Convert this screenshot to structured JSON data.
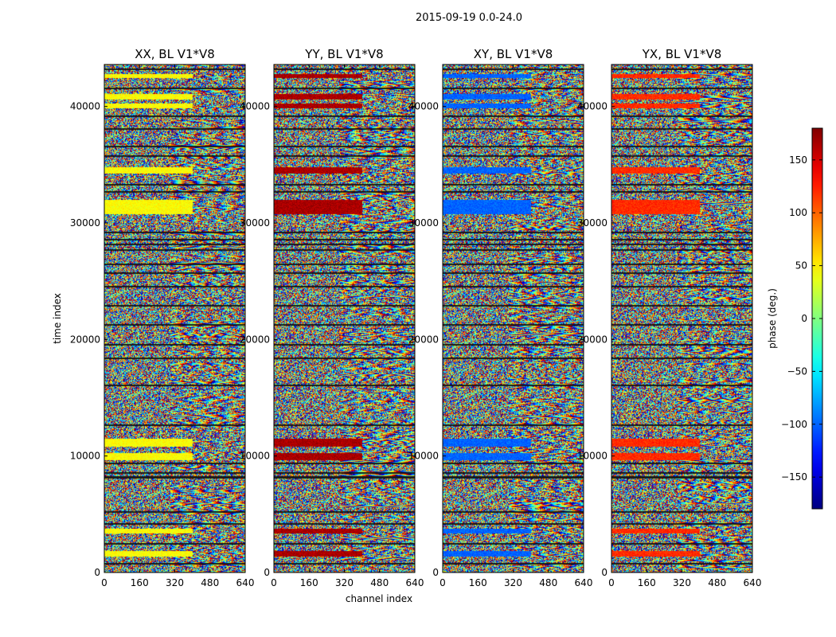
{
  "chart_data": {
    "type": "heatmap",
    "title": "2015-09-19 0.0-24.0",
    "xlabel": "channel index",
    "ylabel": "time index",
    "xlim": [
      0,
      640
    ],
    "ylim": [
      0,
      43600
    ],
    "x_ticks": [
      "0",
      "160",
      "320",
      "480",
      "640"
    ],
    "y_ticks": [
      "0",
      "10000",
      "20000",
      "30000",
      "40000"
    ],
    "y_tick_values": [
      0,
      10000,
      20000,
      30000,
      40000
    ],
    "panels": [
      {
        "title": "XX, BL V1*V8",
        "bias": 45
      },
      {
        "title": "YY, BL V1*V8",
        "bias": 165
      },
      {
        "title": "XY, BL V1*V8",
        "bias": -100
      },
      {
        "title": "YX, BL V1*V8",
        "bias": 120
      }
    ],
    "colorbar": {
      "label": "phase (deg.)",
      "range": [
        -180,
        180
      ],
      "ticks": [
        "150",
        "100",
        "50",
        "0",
        "−50",
        "−100",
        "−150"
      ],
      "tick_values": [
        150,
        100,
        50,
        0,
        -50,
        -100,
        -150
      ],
      "cmap": "jet"
    },
    "coherent_bands": [
      [
        1400,
        1900
      ],
      [
        3400,
        3800
      ],
      [
        9700,
        10300
      ],
      [
        10800,
        11500
      ],
      [
        30800,
        32000
      ],
      [
        34300,
        34800
      ],
      [
        39900,
        40300
      ],
      [
        40600,
        41100
      ],
      [
        42500,
        42800
      ]
    ],
    "blank_rows": [
      800,
      2500,
      4200,
      5200,
      8200,
      8600,
      9400,
      12700,
      16100,
      18400,
      19600,
      21300,
      22900,
      24600,
      25700,
      26500,
      27700,
      28200,
      28600,
      29200,
      32700,
      33300,
      35800,
      36600,
      38100,
      39200,
      41600,
      43200
    ]
  }
}
